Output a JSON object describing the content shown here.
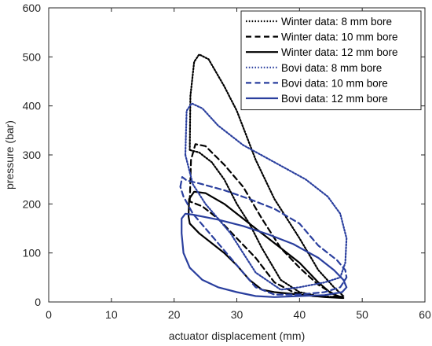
{
  "chart_data": {
    "type": "line",
    "xlabel": "actuator displacement (mm)",
    "ylabel": "pressure (bar)",
    "xlim": [
      0,
      60
    ],
    "ylim": [
      0,
      600
    ],
    "xticks": [
      0,
      10,
      20,
      30,
      40,
      50,
      60
    ],
    "yticks": [
      0,
      100,
      200,
      300,
      400,
      500,
      600
    ],
    "grid": false,
    "legend_position": "top-right",
    "series": [
      {
        "name": "Winter data: 8 mm bore",
        "color": "#000000",
        "dash": "dotted",
        "points": [
          [
            22.5,
            310
          ],
          [
            22.6,
            420
          ],
          [
            23.2,
            490
          ],
          [
            24.0,
            505
          ],
          [
            25.5,
            495
          ],
          [
            28,
            440
          ],
          [
            30,
            390
          ],
          [
            33,
            290
          ],
          [
            36,
            210
          ],
          [
            40,
            130
          ],
          [
            43,
            65
          ],
          [
            45.5,
            30
          ],
          [
            47,
            12
          ],
          [
            46,
            10
          ],
          [
            43,
            12
          ],
          [
            40,
            20
          ],
          [
            37,
            45
          ],
          [
            34,
            110
          ],
          [
            32,
            160
          ],
          [
            30,
            200
          ],
          [
            28,
            250
          ],
          [
            26,
            285
          ],
          [
            24,
            305
          ],
          [
            22.5,
            310
          ]
        ]
      },
      {
        "name": "Winter data: 10 mm bore",
        "color": "#000000",
        "dash": "dashed",
        "points": [
          [
            22.5,
            205
          ],
          [
            22.7,
            290
          ],
          [
            23.4,
            322
          ],
          [
            25,
            318
          ],
          [
            28,
            280
          ],
          [
            31,
            235
          ],
          [
            34,
            170
          ],
          [
            37,
            110
          ],
          [
            40,
            70
          ],
          [
            43,
            35
          ],
          [
            46,
            12
          ],
          [
            45,
            10
          ],
          [
            42,
            12
          ],
          [
            39,
            20
          ],
          [
            36,
            40
          ],
          [
            33,
            90
          ],
          [
            30,
            130
          ],
          [
            27,
            170
          ],
          [
            24.5,
            195
          ],
          [
            22.5,
            205
          ]
        ]
      },
      {
        "name": "Winter data: 12 mm bore",
        "color": "#000000",
        "dash": "solid",
        "points": [
          [
            22.3,
            175
          ],
          [
            22.4,
            210
          ],
          [
            23.2,
            225
          ],
          [
            25,
            222
          ],
          [
            28,
            200
          ],
          [
            31,
            170
          ],
          [
            34,
            140
          ],
          [
            37,
            110
          ],
          [
            40,
            80
          ],
          [
            43,
            40
          ],
          [
            45,
            18
          ],
          [
            47,
            8
          ],
          [
            44,
            10
          ],
          [
            40,
            15
          ],
          [
            36,
            20
          ],
          [
            34,
            25
          ],
          [
            32,
            45
          ],
          [
            30,
            75
          ],
          [
            28,
            100
          ],
          [
            26,
            120
          ],
          [
            24,
            140
          ],
          [
            22.5,
            160
          ],
          [
            22.3,
            175
          ]
        ]
      },
      {
        "name": "Bovi data: 8 mm bore",
        "color": "#2a3f9e",
        "dash": "dotted",
        "points": [
          [
            21.8,
            300
          ],
          [
            22.0,
            390
          ],
          [
            22.8,
            405
          ],
          [
            24.5,
            395
          ],
          [
            27,
            360
          ],
          [
            31,
            320
          ],
          [
            36,
            285
          ],
          [
            41,
            250
          ],
          [
            44.5,
            215
          ],
          [
            46.5,
            180
          ],
          [
            47.5,
            130
          ],
          [
            47.3,
            80
          ],
          [
            46.5,
            50
          ],
          [
            44,
            40
          ],
          [
            40,
            30
          ],
          [
            37,
            25
          ],
          [
            33,
            60
          ],
          [
            31,
            100
          ],
          [
            29,
            140
          ],
          [
            27,
            170
          ],
          [
            25,
            200
          ],
          [
            23,
            240
          ],
          [
            21.8,
            300
          ]
        ]
      },
      {
        "name": "Bovi data: 10 mm bore",
        "color": "#2a3f9e",
        "dash": "dashed",
        "points": [
          [
            21.0,
            235
          ],
          [
            21.3,
            255
          ],
          [
            22.0,
            248
          ],
          [
            24,
            242
          ],
          [
            28,
            228
          ],
          [
            32,
            210
          ],
          [
            36,
            190
          ],
          [
            40,
            160
          ],
          [
            43,
            115
          ],
          [
            46,
            85
          ],
          [
            47.3,
            65
          ],
          [
            47.5,
            50
          ],
          [
            46.5,
            30
          ],
          [
            44,
            20
          ],
          [
            40,
            15
          ],
          [
            36,
            15
          ],
          [
            33,
            30
          ],
          [
            31,
            60
          ],
          [
            29,
            90
          ],
          [
            27,
            120
          ],
          [
            25,
            150
          ],
          [
            23,
            180
          ],
          [
            21.5,
            215
          ],
          [
            21.0,
            235
          ]
        ]
      },
      {
        "name": "Bovi data: 12 mm bore",
        "color": "#2a3f9e",
        "dash": "solid",
        "points": [
          [
            21.2,
            170
          ],
          [
            21.8,
            180
          ],
          [
            23,
            178
          ],
          [
            27,
            168
          ],
          [
            31,
            155
          ],
          [
            35,
            138
          ],
          [
            39,
            118
          ],
          [
            43,
            90
          ],
          [
            45.5,
            65
          ],
          [
            47,
            45
          ],
          [
            47.5,
            30
          ],
          [
            46.8,
            20
          ],
          [
            44,
            14
          ],
          [
            40,
            12
          ],
          [
            36,
            10
          ],
          [
            33,
            12
          ],
          [
            30,
            20
          ],
          [
            27,
            30
          ],
          [
            24.5,
            45
          ],
          [
            22.5,
            70
          ],
          [
            21.5,
            100
          ],
          [
            21.2,
            140
          ],
          [
            21.2,
            170
          ]
        ]
      }
    ]
  }
}
